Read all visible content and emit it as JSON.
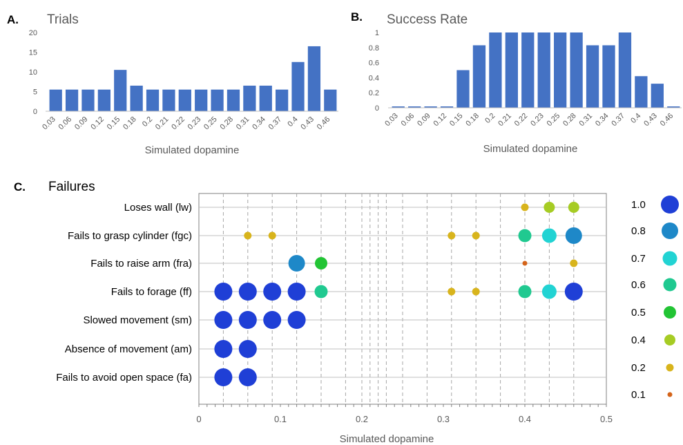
{
  "chart_data": [
    {
      "panel": "A.",
      "type": "bar",
      "title": "Trials",
      "xlabel": "Simulated dopamine",
      "ylim": [
        0,
        20
      ],
      "yticks": [
        "0",
        "5",
        "10",
        "15",
        "20"
      ],
      "categories": [
        "0.03",
        "0.06",
        "0.09",
        "0.12",
        "0.15",
        "0.18",
        "0.2",
        "0.21",
        "0.22",
        "0.23",
        "0.25",
        "0.28",
        "0.31",
        "0.34",
        "0.37",
        "0.4",
        "0.43",
        "0.46"
      ],
      "values": [
        5.5,
        5.5,
        5.5,
        5.5,
        10.5,
        6.5,
        5.5,
        5.5,
        5.5,
        5.5,
        5.5,
        5.5,
        6.5,
        6.5,
        5.5,
        12.5,
        16.5,
        5.5
      ],
      "bar_color": "#4472c4"
    },
    {
      "panel": "B.",
      "type": "bar",
      "title": "Success Rate",
      "xlabel": "Simulated dopamine",
      "ylim": [
        0,
        1
      ],
      "yticks": [
        "0",
        "0.2",
        "0.4",
        "0.6",
        "0.8",
        "1"
      ],
      "categories": [
        "0.03",
        "0.06",
        "0.09",
        "0.12",
        "0.15",
        "0.18",
        "0.2",
        "0.21",
        "0.22",
        "0.23",
        "0.25",
        "0.28",
        "0.31",
        "0.34",
        "0.37",
        "0.4",
        "0.43",
        "0.46"
      ],
      "values": [
        0,
        0,
        0,
        0,
        0.5,
        0.83,
        1,
        1,
        1,
        1,
        1,
        1,
        0.83,
        0.83,
        1,
        0.42,
        0.32,
        0
      ],
      "bar_color": "#4472c4"
    },
    {
      "panel": "C.",
      "type": "scatter",
      "title": "Failures",
      "xlabel": "Simulated dopamine",
      "xlim": [
        0,
        0.5
      ],
      "xticks": [
        "0",
        "0.1",
        "0.2",
        "0.3",
        "0.4",
        "0.5"
      ],
      "xtick_values": [
        0,
        0.1,
        0.2,
        0.3,
        0.4,
        0.5
      ],
      "grid_lines": [
        0.03,
        0.06,
        0.09,
        0.12,
        0.15,
        0.18,
        0.2,
        0.21,
        0.22,
        0.23,
        0.25,
        0.28,
        0.31,
        0.34,
        0.37,
        0.4,
        0.43,
        0.46
      ],
      "categories": [
        "Loses wall (lw)",
        "Fails to grasp cylinder (fgc)",
        "Fails to raise arm (fra)",
        "Fails to forage (ff)",
        "Slowed movement (sm)",
        "Absence of movement (am)",
        "Fails to avoid open space (fa)"
      ],
      "points": [
        {
          "cat": 0,
          "x": 0.4,
          "v": 0.2
        },
        {
          "cat": 0,
          "x": 0.43,
          "v": 0.4
        },
        {
          "cat": 0,
          "x": 0.46,
          "v": 0.4
        },
        {
          "cat": 1,
          "x": 0.06,
          "v": 0.2
        },
        {
          "cat": 1,
          "x": 0.09,
          "v": 0.2
        },
        {
          "cat": 1,
          "x": 0.31,
          "v": 0.2
        },
        {
          "cat": 1,
          "x": 0.34,
          "v": 0.2
        },
        {
          "cat": 1,
          "x": 0.4,
          "v": 0.6
        },
        {
          "cat": 1,
          "x": 0.43,
          "v": 0.7
        },
        {
          "cat": 1,
          "x": 0.46,
          "v": 0.8
        },
        {
          "cat": 2,
          "x": 0.12,
          "v": 0.8
        },
        {
          "cat": 2,
          "x": 0.15,
          "v": 0.5
        },
        {
          "cat": 2,
          "x": 0.4,
          "v": 0.1
        },
        {
          "cat": 2,
          "x": 0.46,
          "v": 0.2
        },
        {
          "cat": 3,
          "x": 0.03,
          "v": 1.0
        },
        {
          "cat": 3,
          "x": 0.06,
          "v": 1.0
        },
        {
          "cat": 3,
          "x": 0.09,
          "v": 1.0
        },
        {
          "cat": 3,
          "x": 0.12,
          "v": 1.0
        },
        {
          "cat": 3,
          "x": 0.15,
          "v": 0.6
        },
        {
          "cat": 3,
          "x": 0.31,
          "v": 0.2
        },
        {
          "cat": 3,
          "x": 0.34,
          "v": 0.2
        },
        {
          "cat": 3,
          "x": 0.4,
          "v": 0.6
        },
        {
          "cat": 3,
          "x": 0.43,
          "v": 0.7
        },
        {
          "cat": 3,
          "x": 0.46,
          "v": 1.0
        },
        {
          "cat": 4,
          "x": 0.03,
          "v": 1.0
        },
        {
          "cat": 4,
          "x": 0.06,
          "v": 1.0
        },
        {
          "cat": 4,
          "x": 0.09,
          "v": 1.0
        },
        {
          "cat": 4,
          "x": 0.12,
          "v": 1.0
        },
        {
          "cat": 5,
          "x": 0.03,
          "v": 1.0
        },
        {
          "cat": 5,
          "x": 0.06,
          "v": 1.0
        },
        {
          "cat": 6,
          "x": 0.03,
          "v": 1.0
        },
        {
          "cat": 6,
          "x": 0.06,
          "v": 1.0
        }
      ],
      "legend": [
        {
          "label": "1.0",
          "value": 1.0,
          "color": "#1f3fd6"
        },
        {
          "label": "0.8",
          "value": 0.8,
          "color": "#1e88c8"
        },
        {
          "label": "0.7",
          "value": 0.7,
          "color": "#22d3d3"
        },
        {
          "label": "0.6",
          "value": 0.6,
          "color": "#20c990"
        },
        {
          "label": "0.5",
          "value": 0.5,
          "color": "#22c434"
        },
        {
          "label": "0.4",
          "value": 0.4,
          "color": "#a6cc24"
        },
        {
          "label": "0.2",
          "value": 0.2,
          "color": "#d8b41c"
        },
        {
          "label": "0.1",
          "value": 0.1,
          "color": "#d4641a"
        }
      ]
    }
  ]
}
